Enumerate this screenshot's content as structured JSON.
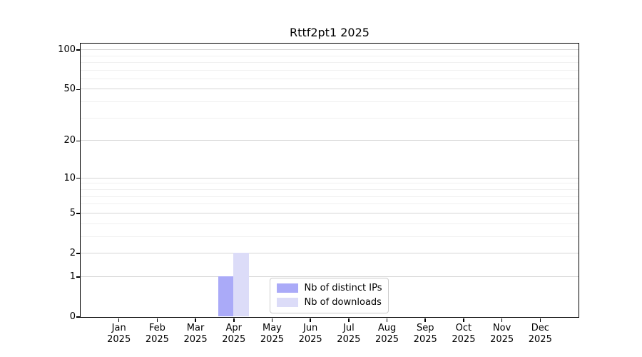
{
  "chart_data": {
    "type": "bar",
    "title": "Rttf2pt1 2025",
    "categories": [
      "Jan",
      "Feb",
      "Mar",
      "Apr",
      "May",
      "Jun",
      "Jul",
      "Aug",
      "Sep",
      "Oct",
      "Nov",
      "Dec"
    ],
    "x_tick_year": "2025",
    "series": [
      {
        "name": "Nb of distinct IPs",
        "color": "#aaaaf8",
        "values": [
          0,
          0,
          0,
          1,
          0,
          0,
          0,
          0,
          0,
          0,
          0,
          0
        ]
      },
      {
        "name": "Nb of downloads",
        "color": "#dcdcf8",
        "values": [
          0,
          0,
          0,
          2,
          0,
          0,
          0,
          0,
          0,
          0,
          0,
          0
        ]
      }
    ],
    "yscale": "log1p",
    "ylim": [
      0,
      112
    ],
    "y_major_ticks": [
      0,
      1,
      2,
      5,
      10,
      20,
      50,
      100
    ],
    "y_minor_gridlines": [
      3,
      4,
      6,
      7,
      8,
      9,
      30,
      40,
      60,
      70,
      80,
      90
    ],
    "grid": true,
    "legend_position": "lower center",
    "xlabel": "",
    "ylabel": "",
    "colors": {
      "major_grid": "#d5d5d5",
      "minor_grid": "#f0f0f0",
      "axis": "#000000",
      "background": "#ffffff",
      "legend_border": "#cccccc"
    }
  }
}
